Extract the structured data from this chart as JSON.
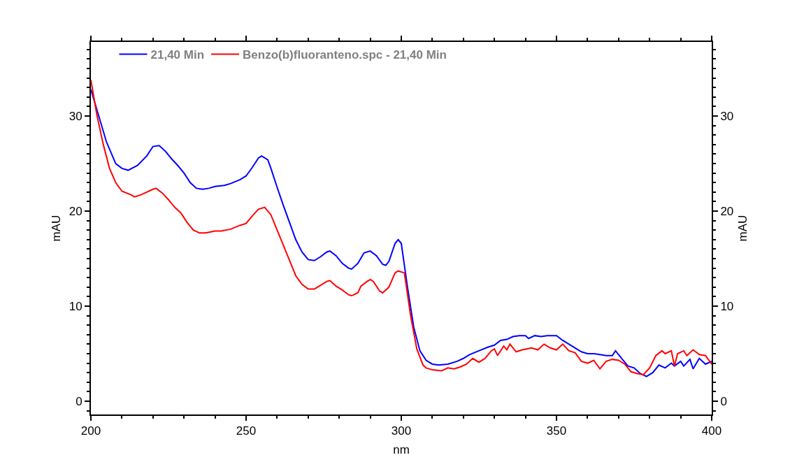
{
  "chart_data": {
    "type": "line",
    "xlabel": "nm",
    "ylabel": "mAU",
    "y2label": "mAU",
    "xlim": [
      200,
      400
    ],
    "xticks": [
      200,
      250,
      300,
      350,
      400
    ],
    "ylim": [
      -1.4,
      37.8
    ],
    "yticks": [
      0,
      10,
      20,
      30
    ],
    "y2lim": [
      -1.4,
      37.8
    ],
    "y2ticks": [
      0,
      10,
      20,
      30
    ],
    "legend": "top left",
    "marker": "none",
    "line_style": "solid",
    "series": [
      {
        "name": "21,40 Min",
        "color": "#0000ff",
        "x": [
          200,
          205,
          208,
          210,
          212,
          215,
          218,
          220,
          222,
          224,
          226,
          228,
          230,
          232,
          234,
          236,
          238,
          240,
          243,
          245,
          248,
          250,
          252,
          254,
          255,
          257,
          258,
          260,
          262,
          264,
          266,
          268,
          270,
          272,
          274,
          276,
          277,
          279,
          281,
          283,
          284,
          286,
          288,
          290,
          292,
          294,
          295,
          296,
          298,
          299,
          300,
          302,
          304,
          306,
          308,
          310,
          312,
          315,
          318,
          320,
          322,
          325,
          328,
          330,
          332,
          334,
          336,
          338,
          340,
          341,
          343,
          345,
          347,
          350,
          352,
          354,
          356,
          358,
          360,
          362,
          364,
          366,
          368,
          369,
          371,
          373,
          375,
          377,
          379,
          381,
          383,
          385,
          387,
          388,
          390,
          391,
          393,
          394,
          396,
          398,
          400
        ],
        "values": [
          32.8,
          27.3,
          25.0,
          24.5,
          24.3,
          24.8,
          25.8,
          26.8,
          26.9,
          26.3,
          25.5,
          24.8,
          24.0,
          23.0,
          22.4,
          22.3,
          22.4,
          22.6,
          22.7,
          22.9,
          23.3,
          23.7,
          24.6,
          25.6,
          25.8,
          25.4,
          24.5,
          22.5,
          20.6,
          18.8,
          17.0,
          15.7,
          14.9,
          14.8,
          15.2,
          15.7,
          15.8,
          15.3,
          14.5,
          14.0,
          13.9,
          14.5,
          15.6,
          15.8,
          15.3,
          14.4,
          14.3,
          14.7,
          16.6,
          17.0,
          16.6,
          12.0,
          7.8,
          5.3,
          4.3,
          3.9,
          3.8,
          3.9,
          4.2,
          4.5,
          4.9,
          5.3,
          5.7,
          5.9,
          6.4,
          6.5,
          6.8,
          6.9,
          6.9,
          6.6,
          6.9,
          6.8,
          6.9,
          6.9,
          6.4,
          6.0,
          5.6,
          5.2,
          5.0,
          5.0,
          4.9,
          4.8,
          4.8,
          5.3,
          4.5,
          3.7,
          3.5,
          2.9,
          2.6,
          3.0,
          3.8,
          3.5,
          4.0,
          3.7,
          4.2,
          3.7,
          4.4,
          3.4,
          4.5,
          3.9,
          4.2
        ]
      },
      {
        "name": "Benzo(b)fluoranteno.spc - 21,40 Min",
        "color": "#ff0000",
        "x": [
          200,
          202,
          204,
          206,
          208,
          210,
          213,
          214,
          216,
          218,
          220,
          221,
          223,
          225,
          227,
          229,
          231,
          233,
          235,
          237,
          240,
          242,
          245,
          248,
          250,
          252,
          254,
          256,
          258,
          260,
          262,
          264,
          266,
          268,
          270,
          272,
          274,
          276,
          277,
          279,
          281,
          283,
          284,
          286,
          287,
          289,
          290,
          291,
          293,
          294,
          296,
          298,
          299,
          301,
          303,
          305,
          307,
          308,
          310,
          313,
          315,
          317,
          319,
          321,
          323,
          325,
          327,
          329,
          330,
          331,
          333,
          334,
          335,
          337,
          339,
          342,
          344,
          346,
          348,
          350,
          352,
          354,
          356,
          358,
          360,
          362,
          364,
          366,
          368,
          370,
          372,
          374,
          376,
          378,
          380,
          382,
          384,
          385,
          387,
          388,
          389,
          391,
          392,
          394,
          396,
          398,
          400
        ],
        "values": [
          33.8,
          30.0,
          27.0,
          24.5,
          23.0,
          22.1,
          21.7,
          21.5,
          21.7,
          22.0,
          22.3,
          22.4,
          21.9,
          21.2,
          20.4,
          19.8,
          18.8,
          18.0,
          17.7,
          17.7,
          17.9,
          17.9,
          18.1,
          18.5,
          18.7,
          19.5,
          20.2,
          20.4,
          19.6,
          18.0,
          16.4,
          14.8,
          13.2,
          12.3,
          11.8,
          11.8,
          12.2,
          12.6,
          12.7,
          12.1,
          11.7,
          11.2,
          11.1,
          11.4,
          12.1,
          12.6,
          12.8,
          12.6,
          11.6,
          11.4,
          12.0,
          13.5,
          13.7,
          13.5,
          9.0,
          5.5,
          3.8,
          3.5,
          3.3,
          3.2,
          3.5,
          3.4,
          3.6,
          3.9,
          4.5,
          4.1,
          4.5,
          5.3,
          5.5,
          4.8,
          5.8,
          5.4,
          6.0,
          5.2,
          5.4,
          5.6,
          5.4,
          6.0,
          5.6,
          5.4,
          6.0,
          5.3,
          5.1,
          4.2,
          4.0,
          4.3,
          3.4,
          4.2,
          4.4,
          4.3,
          3.9,
          3.1,
          2.9,
          2.8,
          3.5,
          4.8,
          5.3,
          5.0,
          5.3,
          3.7,
          5.0,
          5.3,
          4.8,
          5.4,
          4.9,
          4.8,
          3.9
        ]
      }
    ]
  }
}
